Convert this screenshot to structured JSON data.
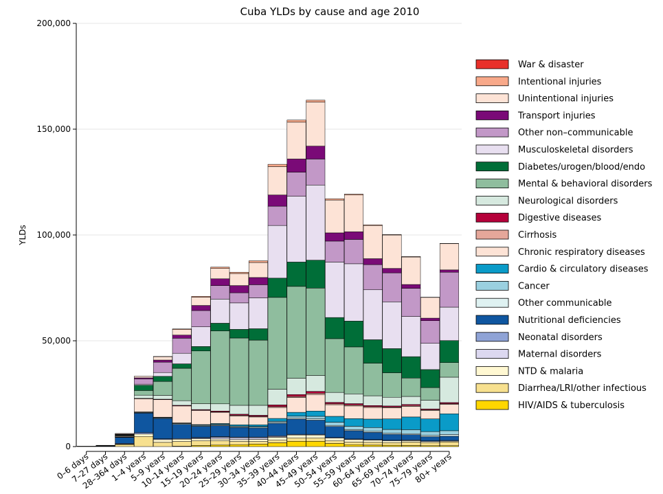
{
  "chart_data": {
    "type": "bar",
    "stacked": true,
    "title": "Cuba YLDs by cause and age 2010",
    "ylabel": "YLDs",
    "xlabel": "",
    "ylim": [
      0,
      200000
    ],
    "yticks": [
      0,
      50000,
      100000,
      150000,
      200000
    ],
    "ytick_labels": [
      "0",
      "50,000",
      "100,000",
      "150,000",
      "200,000"
    ],
    "grid": true,
    "legend_position": "right",
    "categories": [
      "0–6 days",
      "7–27 days",
      "28–364 days",
      "1–4 years",
      "5–9 years",
      "10–14 years",
      "15–19 years",
      "20–24 years",
      "25–29 years",
      "30–34 years",
      "35–39 years",
      "40–44 years",
      "45–49 years",
      "50–54 years",
      "55–59 years",
      "60–64 years",
      "65–69 years",
      "70–74 years",
      "75–79 years",
      "80+ years"
    ],
    "series": [
      {
        "name": "HIV/AIDS & tuberculosis",
        "color": "#ffd700",
        "values": [
          0,
          0,
          0,
          0,
          0,
          200,
          500,
          700,
          900,
          1200,
          1800,
          2500,
          2500,
          1500,
          900,
          700,
          600,
          500,
          400,
          400
        ]
      },
      {
        "name": "Diarrhea/LRI/other infectious",
        "color": "#f7e08f",
        "values": [
          0,
          0,
          1000,
          4800,
          2000,
          2200,
          2200,
          2000,
          1500,
          1200,
          1200,
          1500,
          1500,
          1200,
          1200,
          1300,
          1300,
          1600,
          1500,
          1800
        ]
      },
      {
        "name": "NTD & malaria",
        "color": "#fff8d2",
        "values": [
          0,
          0,
          200,
          1200,
          1300,
          1100,
          1000,
          900,
          900,
          1000,
          1400,
          1500,
          1500,
          1300,
          1200,
          1000,
          800,
          700,
          500,
          400
        ]
      },
      {
        "name": "Maternal disorders",
        "color": "#dcd8f0",
        "values": [
          0,
          0,
          0,
          0,
          0,
          0,
          300,
          800,
          900,
          800,
          400,
          0,
          0,
          0,
          0,
          0,
          0,
          0,
          0,
          0
        ]
      },
      {
        "name": "Neonatal disorders",
        "color": "#8fa3d6",
        "values": [
          50,
          100,
          300,
          600,
          400,
          300,
          300,
          300,
          300,
          300,
          300,
          300,
          300,
          300,
          300,
          300,
          300,
          300,
          300,
          300
        ]
      },
      {
        "name": "Nutritional deficiencies",
        "color": "#0f56a0",
        "values": [
          100,
          200,
          2800,
          9200,
          9600,
          6700,
          5300,
          5200,
          4500,
          4300,
          5900,
          7200,
          6700,
          5200,
          3900,
          3400,
          2800,
          2500,
          2000,
          2000
        ]
      },
      {
        "name": "Other communicable",
        "color": "#dff2f2",
        "values": [
          0,
          0,
          100,
          300,
          300,
          400,
          400,
          400,
          400,
          400,
          500,
          600,
          600,
          500,
          500,
          500,
          500,
          500,
          600,
          800
        ]
      },
      {
        "name": "Cancer",
        "color": "#9ad0e0",
        "values": [
          0,
          0,
          0,
          100,
          100,
          100,
          100,
          200,
          300,
          300,
          500,
          800,
          1200,
          1500,
          1600,
          1800,
          1800,
          1900,
          1800,
          1800
        ]
      },
      {
        "name": "Cardio & circulatory diseases",
        "color": "#0a9bc8",
        "values": [
          0,
          0,
          100,
          200,
          200,
          200,
          300,
          400,
          600,
          800,
          1300,
          1800,
          2500,
          2800,
          3600,
          4000,
          5000,
          6000,
          6000,
          8000
        ]
      },
      {
        "name": "Chronic respiratory diseases",
        "color": "#fde3d6",
        "values": [
          0,
          0,
          300,
          6200,
          8300,
          8000,
          6700,
          5300,
          4200,
          3700,
          5200,
          7000,
          7800,
          5500,
          6000,
          5500,
          5200,
          5000,
          4000,
          4500
        ]
      },
      {
        "name": "Cirrhosis",
        "color": "#e5a79a",
        "values": [
          0,
          0,
          0,
          0,
          0,
          0,
          100,
          200,
          300,
          300,
          400,
          500,
          600,
          500,
          500,
          400,
          400,
          400,
          300,
          300
        ]
      },
      {
        "name": "Digestive diseases",
        "color": "#b5003a",
        "values": [
          0,
          0,
          100,
          200,
          200,
          300,
          300,
          400,
          500,
          500,
          800,
          900,
          900,
          600,
          600,
          500,
          500,
          500,
          400,
          500
        ]
      },
      {
        "name": "Neurological disorders",
        "color": "#d6e9df",
        "values": [
          0,
          100,
          300,
          1500,
          1800,
          2200,
          2800,
          3400,
          4200,
          4700,
          7400,
          7700,
          7500,
          4700,
          4600,
          4600,
          4100,
          3800,
          4100,
          12000
        ]
      },
      {
        "name": "Mental & behavioral disorders",
        "color": "#8fbd9e",
        "values": [
          0,
          0,
          100,
          2200,
          6600,
          15300,
          24900,
          34500,
          31800,
          30800,
          43400,
          43400,
          41300,
          25400,
          22200,
          15400,
          11600,
          8700,
          6000,
          6900
        ]
      },
      {
        "name": "Diabetes/urogen/blood/endo",
        "color": "#006e38",
        "values": [
          0,
          0,
          200,
          2500,
          2400,
          2100,
          2100,
          3600,
          4100,
          5400,
          9100,
          11500,
          13200,
          10000,
          12200,
          11100,
          11400,
          10100,
          8500,
          10400
        ]
      },
      {
        "name": "Musculoskeletal disorders",
        "color": "#e8dff0",
        "values": [
          0,
          0,
          100,
          500,
          1800,
          5000,
          9300,
          11400,
          12500,
          14600,
          24900,
          31100,
          35500,
          26200,
          27100,
          23600,
          22100,
          19000,
          12400,
          15800
        ]
      },
      {
        "name": "Other non–communicable",
        "color": "#c298c7",
        "values": [
          0,
          100,
          200,
          2500,
          4900,
          7100,
          7700,
          6400,
          4800,
          6200,
          9100,
          11400,
          12300,
          9900,
          11500,
          11900,
          13700,
          13300,
          10700,
          16500
        ]
      },
      {
        "name": "Transport injuries",
        "color": "#7a0a77",
        "values": [
          0,
          0,
          100,
          500,
          1000,
          1500,
          2400,
          3200,
          3400,
          3400,
          5300,
          6200,
          6100,
          3900,
          3600,
          2800,
          2100,
          1800,
          1200,
          1100
        ]
      },
      {
        "name": "Unintentional injuries",
        "color": "#fde3d6",
        "values": [
          50,
          100,
          300,
          800,
          1600,
          2600,
          3900,
          4900,
          5700,
          7100,
          13400,
          17400,
          20800,
          15500,
          17400,
          15700,
          15800,
          13000,
          9800,
          12400
        ]
      },
      {
        "name": "Intentional injuries",
        "color": "#f8a98a",
        "values": [
          0,
          0,
          0,
          0,
          100,
          300,
          400,
          600,
          600,
          800,
          1100,
          1000,
          900,
          600,
          400,
          300,
          200,
          200,
          100,
          100
        ]
      },
      {
        "name": "War & disaster",
        "color": "#e8302a",
        "values": [
          0,
          0,
          0,
          0,
          0,
          0,
          0,
          0,
          0,
          0,
          0,
          0,
          0,
          0,
          0,
          0,
          0,
          0,
          0,
          0
        ]
      }
    ]
  }
}
